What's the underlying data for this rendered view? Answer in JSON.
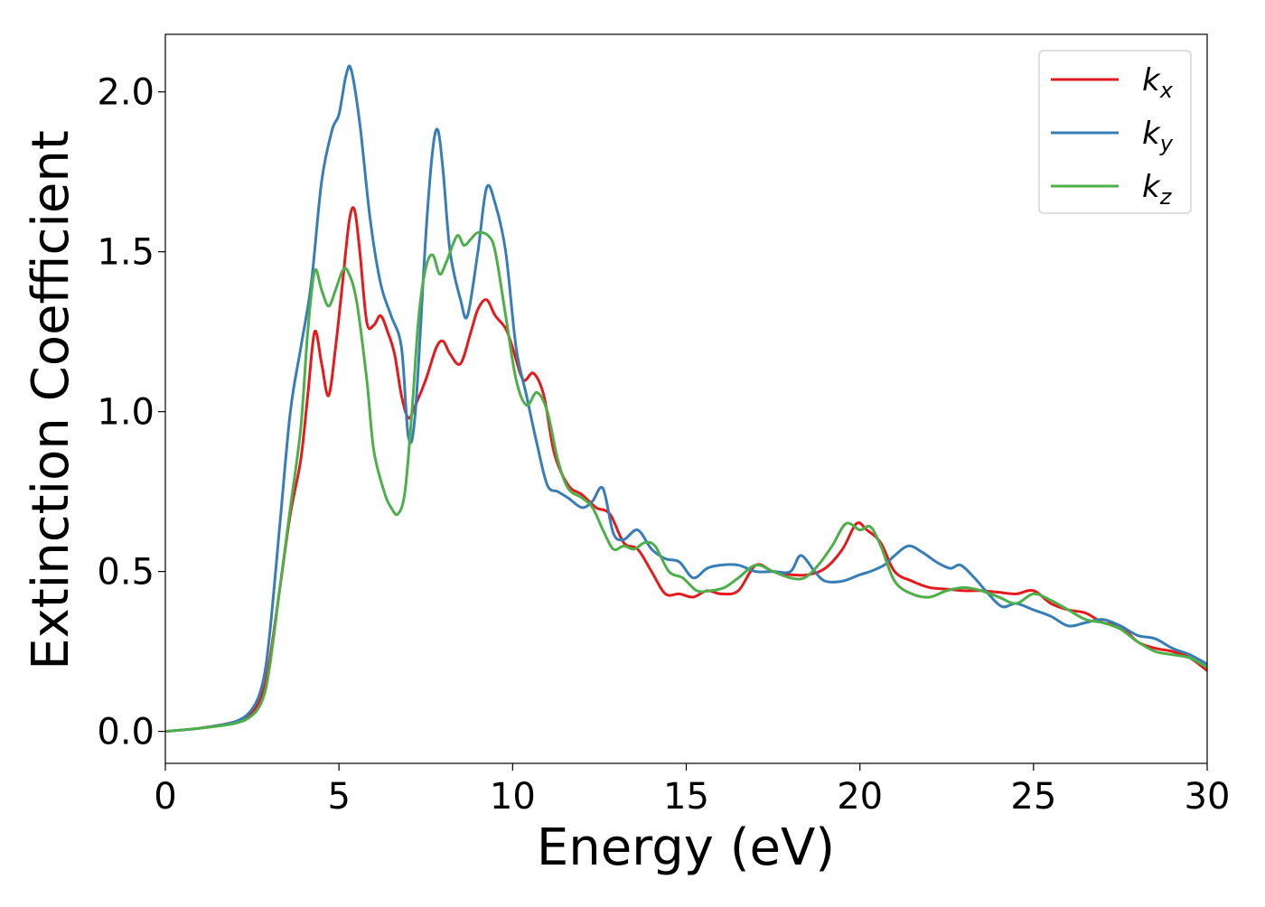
{
  "chart_data": {
    "type": "line",
    "xlabel": "Energy (eV)",
    "ylabel": "Extinction Coefficient",
    "xlim": [
      0,
      30
    ],
    "ylim": [
      -0.1,
      2.18
    ],
    "xticks": [
      0,
      5,
      10,
      15,
      20,
      25,
      30
    ],
    "yticks": [
      0.0,
      0.5,
      1.0,
      1.5,
      2.0
    ],
    "xtick_labels": [
      "0",
      "5",
      "10",
      "15",
      "20",
      "25",
      "30"
    ],
    "ytick_labels": [
      "0.0",
      "0.5",
      "1.0",
      "1.5",
      "2.0"
    ],
    "grid": false,
    "legend_position": "top-right",
    "series": [
      {
        "name": "kx",
        "label_base": "k",
        "label_sub": "x",
        "color": "#e41a1c",
        "x": [
          0,
          1,
          2,
          2.5,
          2.8,
          3.0,
          3.3,
          3.6,
          3.9,
          4.1,
          4.3,
          4.5,
          4.7,
          4.9,
          5.1,
          5.3,
          5.45,
          5.6,
          5.8,
          6.0,
          6.2,
          6.4,
          6.6,
          6.8,
          7.0,
          7.2,
          7.5,
          7.8,
          8.0,
          8.2,
          8.5,
          8.8,
          9.0,
          9.25,
          9.5,
          9.8,
          10.0,
          10.3,
          10.6,
          10.9,
          11.2,
          11.6,
          12.0,
          12.4,
          12.8,
          13.2,
          13.6,
          14.0,
          14.4,
          14.8,
          15.2,
          15.6,
          16.0,
          16.5,
          17.0,
          17.5,
          18.0,
          18.5,
          19.0,
          19.5,
          19.9,
          20.2,
          20.6,
          21.0,
          21.5,
          22.0,
          22.5,
          23.0,
          23.5,
          24.0,
          24.5,
          25.0,
          25.5,
          26.0,
          26.5,
          27.0,
          27.5,
          28.0,
          28.5,
          29.0,
          29.5,
          30.0
        ],
        "values": [
          0.0,
          0.01,
          0.03,
          0.06,
          0.12,
          0.22,
          0.45,
          0.68,
          0.85,
          1.05,
          1.25,
          1.15,
          1.05,
          1.2,
          1.4,
          1.6,
          1.63,
          1.5,
          1.28,
          1.27,
          1.3,
          1.25,
          1.18,
          1.05,
          0.98,
          1.02,
          1.1,
          1.2,
          1.22,
          1.18,
          1.15,
          1.25,
          1.32,
          1.35,
          1.3,
          1.26,
          1.2,
          1.1,
          1.12,
          1.05,
          0.87,
          0.77,
          0.74,
          0.7,
          0.68,
          0.59,
          0.57,
          0.5,
          0.43,
          0.43,
          0.42,
          0.44,
          0.43,
          0.44,
          0.52,
          0.5,
          0.49,
          0.49,
          0.51,
          0.57,
          0.65,
          0.63,
          0.59,
          0.5,
          0.47,
          0.45,
          0.445,
          0.44,
          0.44,
          0.435,
          0.43,
          0.44,
          0.4,
          0.38,
          0.37,
          0.34,
          0.33,
          0.28,
          0.26,
          0.25,
          0.23,
          0.19
        ]
      },
      {
        "name": "ky",
        "label_base": "k",
        "label_sub": "y",
        "color": "#377eb8",
        "x": [
          0,
          1,
          2,
          2.5,
          2.8,
          3.0,
          3.3,
          3.6,
          3.9,
          4.2,
          4.5,
          4.8,
          5.0,
          5.2,
          5.35,
          5.6,
          5.9,
          6.2,
          6.5,
          6.8,
          7.0,
          7.2,
          7.5,
          7.7,
          7.85,
          8.0,
          8.2,
          8.5,
          8.7,
          9.0,
          9.25,
          9.5,
          9.8,
          10.1,
          10.4,
          10.7,
          11.0,
          11.3,
          11.6,
          12.0,
          12.3,
          12.6,
          12.9,
          13.2,
          13.6,
          14.0,
          14.4,
          14.8,
          15.2,
          15.6,
          16.0,
          16.5,
          17.0,
          17.5,
          18.0,
          18.3,
          18.7,
          19.0,
          19.5,
          20.0,
          20.3,
          20.7,
          21.0,
          21.4,
          21.8,
          22.2,
          22.6,
          22.9,
          23.3,
          23.7,
          24.1,
          24.5,
          25.0,
          25.5,
          26.0,
          26.5,
          27.0,
          27.5,
          28.0,
          28.5,
          29.0,
          29.5,
          30.0
        ],
        "values": [
          0.0,
          0.01,
          0.03,
          0.07,
          0.15,
          0.3,
          0.65,
          1.0,
          1.2,
          1.4,
          1.72,
          1.88,
          1.93,
          2.05,
          2.07,
          1.9,
          1.6,
          1.4,
          1.3,
          1.2,
          0.92,
          1.0,
          1.55,
          1.82,
          1.88,
          1.75,
          1.5,
          1.35,
          1.3,
          1.5,
          1.7,
          1.65,
          1.5,
          1.2,
          1.05,
          0.9,
          0.77,
          0.75,
          0.73,
          0.7,
          0.72,
          0.76,
          0.62,
          0.6,
          0.63,
          0.57,
          0.54,
          0.53,
          0.48,
          0.51,
          0.52,
          0.52,
          0.5,
          0.5,
          0.5,
          0.55,
          0.5,
          0.47,
          0.47,
          0.49,
          0.5,
          0.52,
          0.55,
          0.58,
          0.56,
          0.53,
          0.51,
          0.52,
          0.48,
          0.43,
          0.39,
          0.4,
          0.38,
          0.36,
          0.33,
          0.34,
          0.35,
          0.33,
          0.3,
          0.29,
          0.26,
          0.24,
          0.21
        ]
      },
      {
        "name": "kz",
        "label_base": "k",
        "label_sub": "z",
        "color": "#4daf4a",
        "x": [
          0,
          1,
          2,
          2.5,
          2.8,
          3.0,
          3.3,
          3.6,
          3.9,
          4.1,
          4.3,
          4.5,
          4.7,
          4.9,
          5.1,
          5.25,
          5.5,
          5.8,
          6.0,
          6.3,
          6.5,
          6.7,
          6.9,
          7.1,
          7.3,
          7.5,
          7.7,
          7.9,
          8.1,
          8.4,
          8.6,
          8.8,
          9.0,
          9.3,
          9.5,
          9.8,
          10.1,
          10.4,
          10.7,
          11.0,
          11.3,
          11.6,
          12.0,
          12.3,
          12.6,
          12.9,
          13.2,
          13.5,
          13.8,
          14.1,
          14.5,
          14.9,
          15.3,
          15.7,
          16.1,
          16.5,
          17.0,
          17.5,
          18.0,
          18.4,
          18.8,
          19.2,
          19.6,
          20.0,
          20.3,
          20.6,
          21.0,
          21.5,
          22.0,
          22.5,
          23.0,
          23.5,
          24.0,
          24.5,
          25.0,
          25.5,
          26.0,
          26.5,
          27.0,
          27.5,
          28.0,
          28.5,
          29.0,
          29.5,
          30.0
        ],
        "values": [
          0.0,
          0.01,
          0.025,
          0.05,
          0.1,
          0.2,
          0.45,
          0.7,
          0.95,
          1.25,
          1.44,
          1.38,
          1.33,
          1.38,
          1.44,
          1.44,
          1.35,
          1.1,
          0.88,
          0.75,
          0.7,
          0.68,
          0.75,
          1.0,
          1.3,
          1.45,
          1.49,
          1.43,
          1.47,
          1.55,
          1.52,
          1.54,
          1.56,
          1.55,
          1.5,
          1.3,
          1.1,
          1.02,
          1.06,
          1.0,
          0.85,
          0.76,
          0.73,
          0.7,
          0.63,
          0.57,
          0.58,
          0.57,
          0.59,
          0.58,
          0.5,
          0.48,
          0.44,
          0.44,
          0.45,
          0.48,
          0.52,
          0.5,
          0.48,
          0.48,
          0.52,
          0.58,
          0.65,
          0.63,
          0.64,
          0.58,
          0.47,
          0.43,
          0.42,
          0.44,
          0.45,
          0.44,
          0.42,
          0.4,
          0.43,
          0.41,
          0.38,
          0.35,
          0.34,
          0.32,
          0.28,
          0.25,
          0.24,
          0.23,
          0.2
        ]
      }
    ]
  }
}
